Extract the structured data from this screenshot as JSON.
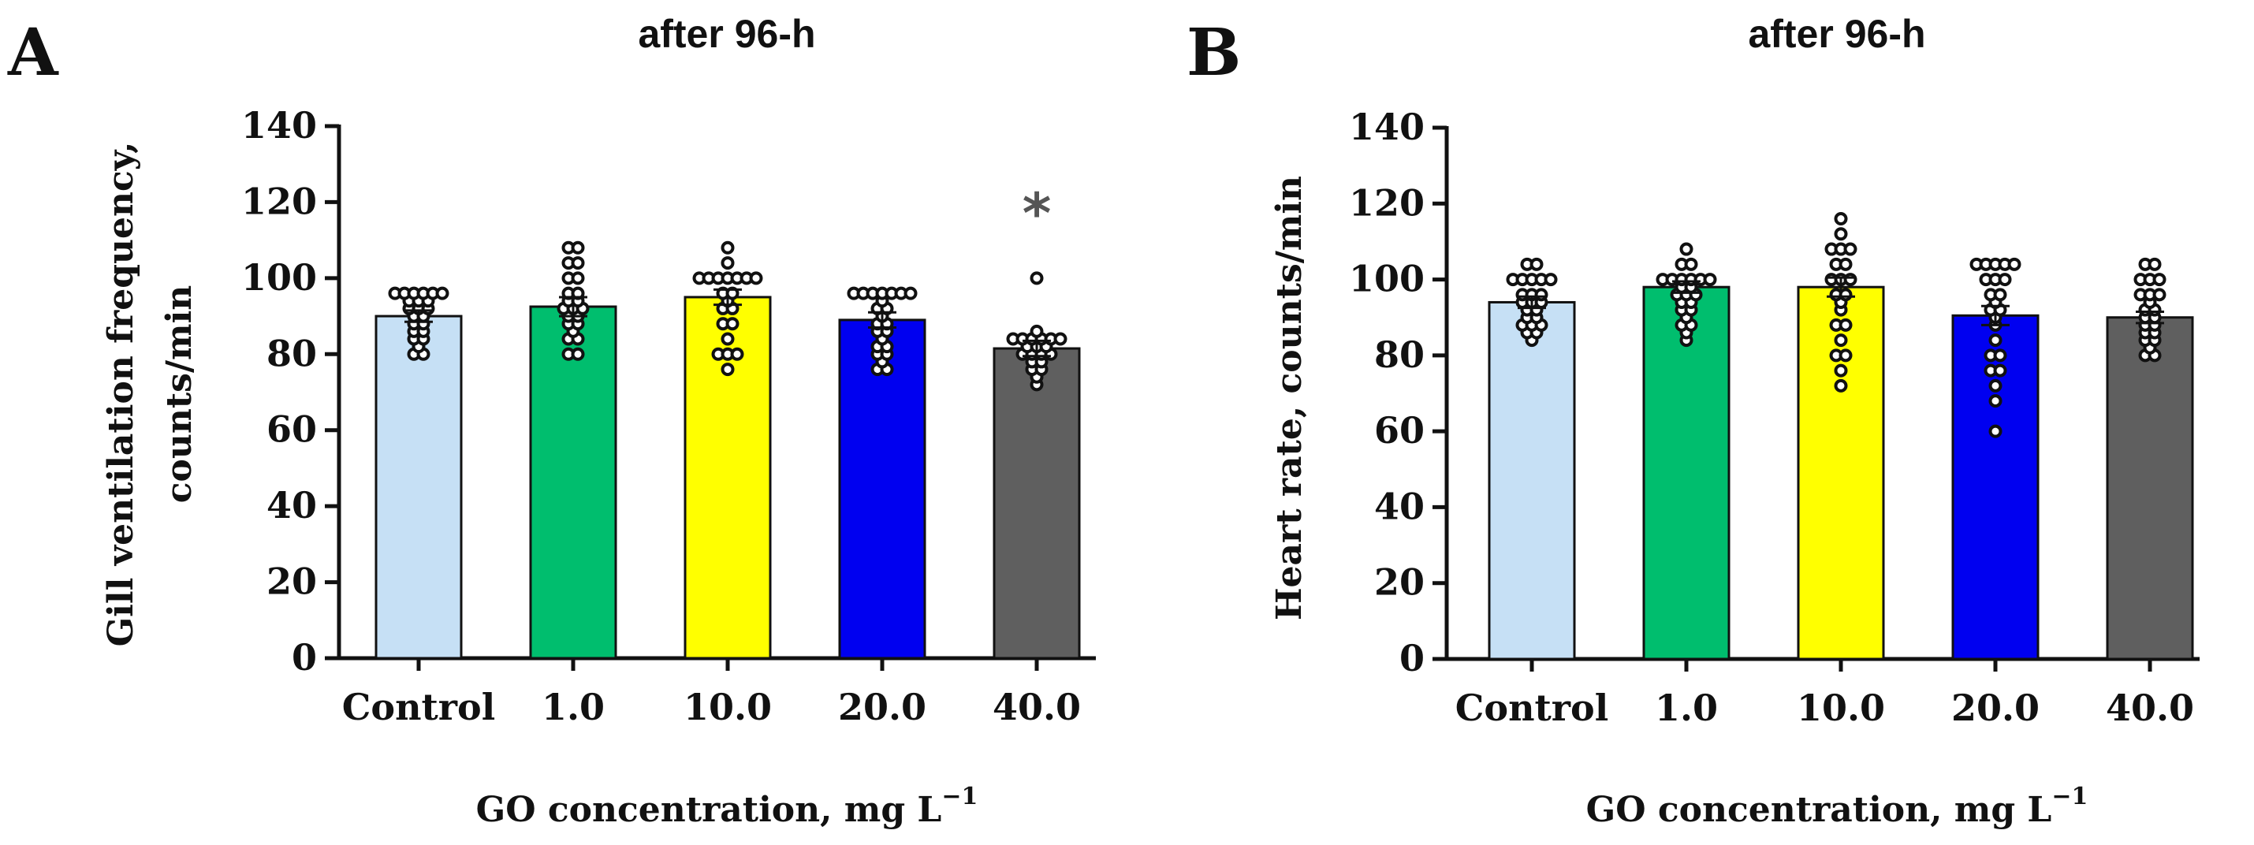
{
  "chart_data": [
    {
      "panel": "A",
      "type": "bar",
      "title": "after 96-h",
      "xlabel": "GO concentration, mg L",
      "xlabel_sup": "−1",
      "ylabel": [
        "Gill ventilation frequency,",
        "counts/min"
      ],
      "ylim": [
        0,
        140
      ],
      "yticks": [
        0,
        20,
        40,
        60,
        80,
        100,
        120,
        140
      ],
      "categories": [
        "Control",
        "1.0",
        "10.0",
        "20.0",
        "40.0"
      ],
      "colors": [
        "#c6e0f5",
        "#00be6e",
        "#ffff00",
        "#0000f0",
        "#5f5f5f"
      ],
      "values": [
        90,
        92.5,
        95,
        89,
        81.5
      ],
      "sem": [
        1.5,
        2.5,
        2,
        2,
        2
      ],
      "annotations": [
        "",
        "",
        "",
        "",
        "*"
      ],
      "points": [
        [
          96,
          96,
          96,
          96,
          96,
          96,
          94,
          94,
          94,
          92,
          92,
          92,
          90,
          90,
          88,
          88,
          86,
          86,
          84,
          84,
          82,
          80,
          80
        ],
        [
          108,
          108,
          104,
          104,
          100,
          100,
          96,
          96,
          94,
          94,
          92,
          92,
          92,
          90,
          90,
          88,
          88,
          86,
          84,
          84,
          80,
          80
        ],
        [
          108,
          104,
          100,
          100,
          100,
          100,
          100,
          100,
          100,
          96,
          96,
          94,
          92,
          92,
          88,
          88,
          84,
          80,
          80,
          80,
          76
        ],
        [
          96,
          96,
          96,
          96,
          96,
          96,
          96,
          94,
          92,
          92,
          90,
          88,
          88,
          86,
          86,
          84,
          82,
          82,
          80,
          80,
          78,
          76,
          76
        ],
        [
          100,
          86,
          84,
          84,
          84,
          84,
          84,
          84,
          82,
          82,
          82,
          80,
          80,
          80,
          80,
          78,
          78,
          76,
          76,
          74,
          72
        ]
      ]
    },
    {
      "panel": "B",
      "type": "bar",
      "title": "after 96-h",
      "xlabel": "GO concentration, mg L",
      "xlabel_sup": "−1",
      "ylabel": [
        "Heart rate, counts/min"
      ],
      "ylim": [
        0,
        140
      ],
      "yticks": [
        0,
        20,
        40,
        60,
        80,
        100,
        120,
        140
      ],
      "categories": [
        "Control",
        "1.0",
        "10.0",
        "20.0",
        "40.0"
      ],
      "colors": [
        "#c6e0f5",
        "#00be6e",
        "#ffff00",
        "#0000f0",
        "#5f5f5f"
      ],
      "values": [
        94,
        98,
        98,
        90.5,
        90
      ],
      "sem": [
        1.5,
        1.5,
        2.5,
        2.5,
        1.5
      ],
      "annotations": [
        "",
        "",
        "",
        "",
        ""
      ],
      "points": [
        [
          104,
          104,
          100,
          100,
          100,
          100,
          100,
          96,
          96,
          96,
          94,
          94,
          94,
          92,
          92,
          90,
          90,
          88,
          88,
          88,
          86,
          86,
          84
        ],
        [
          108,
          104,
          104,
          100,
          100,
          100,
          100,
          100,
          100,
          98,
          98,
          96,
          96,
          96,
          94,
          94,
          92,
          92,
          90,
          88,
          88,
          86,
          84
        ],
        [
          116,
          112,
          108,
          108,
          108,
          104,
          104,
          100,
          100,
          100,
          96,
          96,
          94,
          92,
          88,
          88,
          84,
          80,
          80,
          76,
          72
        ],
        [
          104,
          104,
          104,
          104,
          104,
          100,
          100,
          100,
          96,
          96,
          94,
          92,
          92,
          90,
          88,
          84,
          80,
          80,
          76,
          76,
          72,
          68,
          60
        ],
        [
          104,
          104,
          100,
          100,
          100,
          96,
          96,
          96,
          94,
          92,
          92,
          90,
          90,
          88,
          88,
          86,
          86,
          84,
          84,
          82,
          80,
          80
        ]
      ]
    }
  ]
}
